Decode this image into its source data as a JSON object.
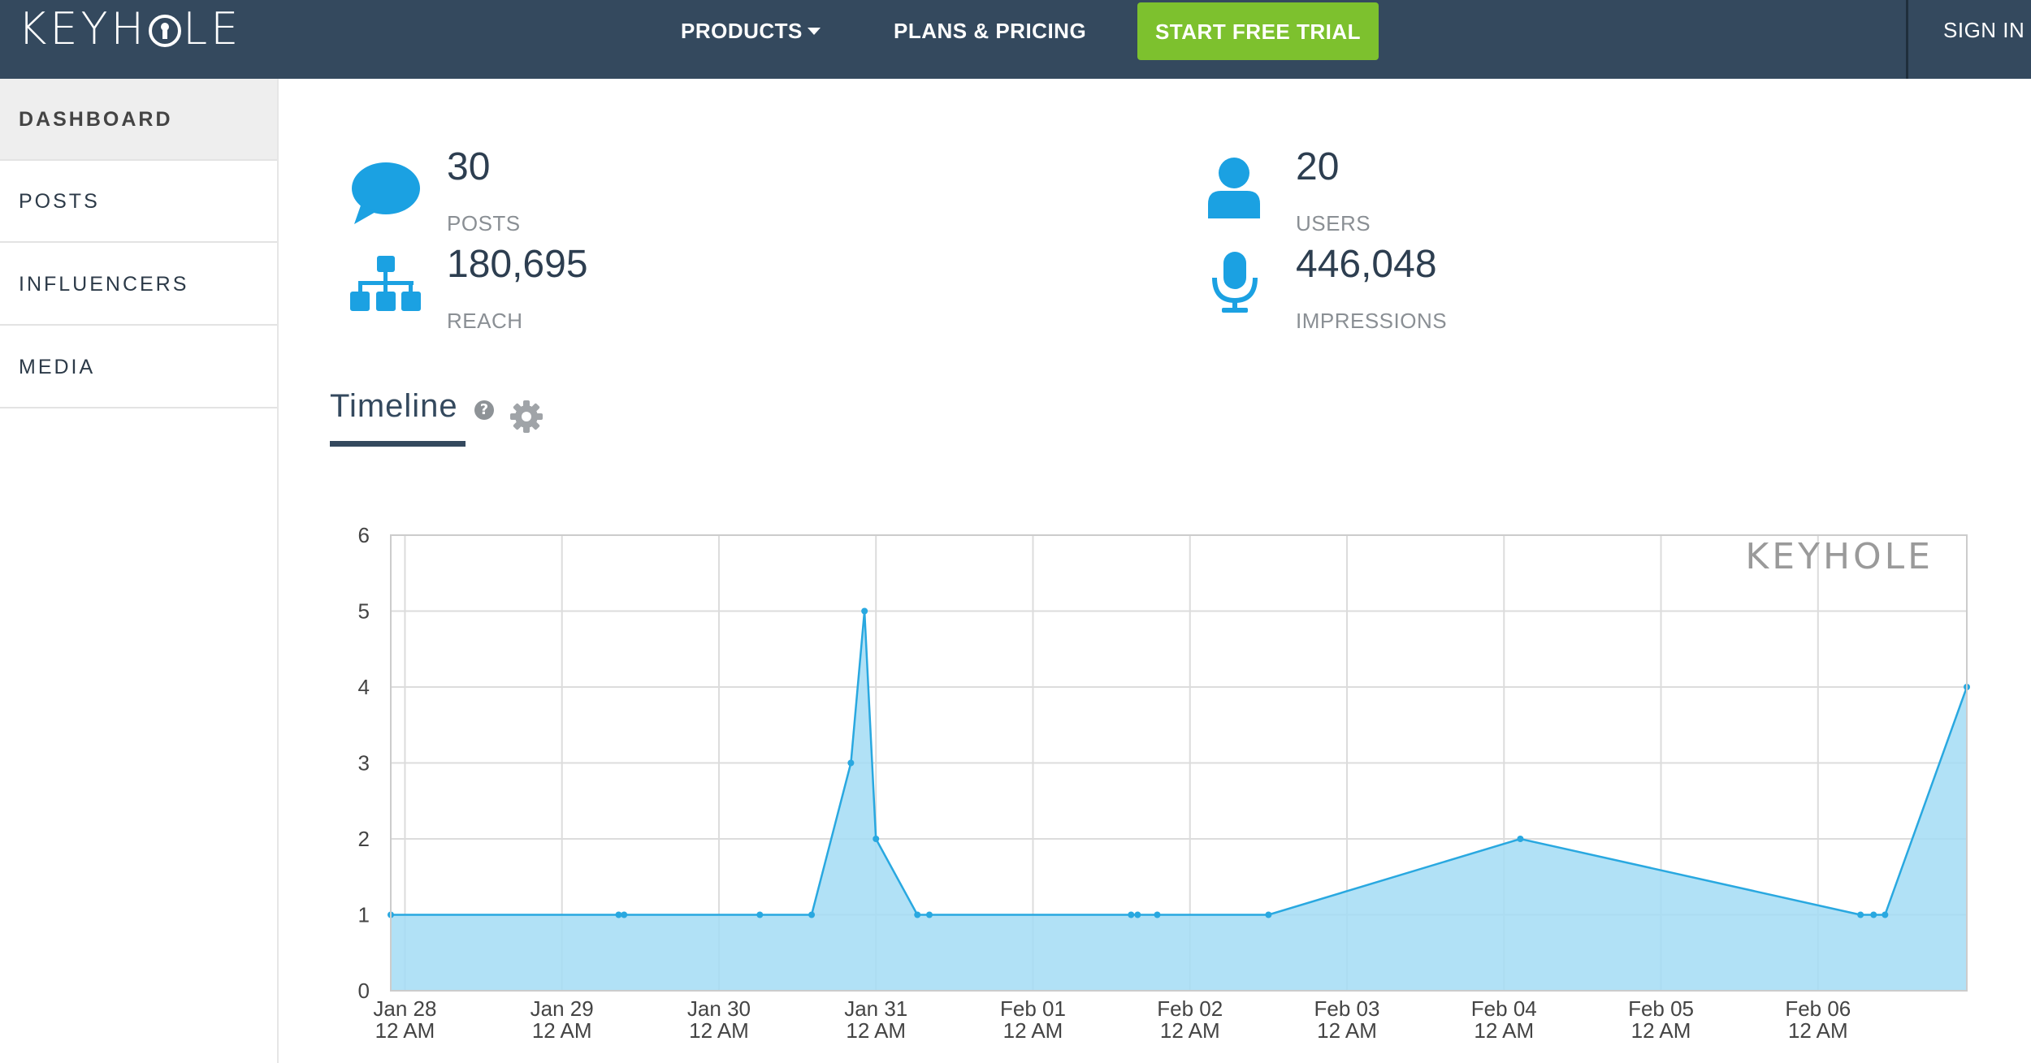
{
  "header": {
    "logo": "KEYHOLE",
    "nav": {
      "products": "PRODUCTS",
      "pricing": "PLANS & PRICING"
    },
    "trial_button": "START FREE TRIAL",
    "sign_in": "SIGN IN"
  },
  "sidebar": {
    "items": [
      {
        "label": "DASHBOARD",
        "active": true
      },
      {
        "label": "POSTS",
        "active": false
      },
      {
        "label": "INFLUENCERS",
        "active": false
      },
      {
        "label": "MEDIA",
        "active": false
      }
    ]
  },
  "stats": {
    "posts": {
      "value": "30",
      "label": "POSTS",
      "icon": "speech-bubble-icon"
    },
    "users": {
      "value": "20",
      "label": "USERS",
      "icon": "user-icon"
    },
    "reach": {
      "value": "180,695",
      "label": "REACH",
      "icon": "network-icon"
    },
    "impressions": {
      "value": "446,048",
      "label": "IMPRESSIONS",
      "icon": "microphone-icon"
    }
  },
  "timeline": {
    "title": "Timeline",
    "help_glyph": "?"
  },
  "colors": {
    "nav_bg": "#34495e",
    "accent_green": "#7dc12e",
    "icon_blue": "#1ba1e2",
    "series_line": "#29a8e0",
    "series_fill": "#a3dcf5"
  },
  "chart_data": {
    "type": "area",
    "watermark": "KEYHOLE",
    "ylim": [
      0,
      6
    ],
    "y_ticks": [
      "0",
      "1",
      "2",
      "3",
      "4",
      "5",
      "6"
    ],
    "x_ticks": [
      {
        "date": "Jan 28",
        "time": "12 AM"
      },
      {
        "date": "Jan 29",
        "time": "12 AM"
      },
      {
        "date": "Jan 30",
        "time": "12 AM"
      },
      {
        "date": "Jan 31",
        "time": "12 AM"
      },
      {
        "date": "Feb 01",
        "time": "12 AM"
      },
      {
        "date": "Feb 02",
        "time": "12 AM"
      },
      {
        "date": "Feb 03",
        "time": "12 AM"
      },
      {
        "date": "Feb 04",
        "time": "12 AM"
      },
      {
        "date": "Feb 05",
        "time": "12 AM"
      },
      {
        "date": "Feb 06",
        "time": "12 AM"
      }
    ],
    "xlim": [
      "Jan 27 21:50",
      "Feb 06 22:45"
    ],
    "points": [
      {
        "x": "Jan 27 21:50",
        "y": 1
      },
      {
        "x": "Jan 29 08:40",
        "y": 1
      },
      {
        "x": "Jan 29 09:30",
        "y": 1
      },
      {
        "x": "Jan 30 06:15",
        "y": 1
      },
      {
        "x": "Jan 30 14:10",
        "y": 1
      },
      {
        "x": "Jan 30 20:10",
        "y": 3
      },
      {
        "x": "Jan 30 22:15",
        "y": 5
      },
      {
        "x": "Jan 31 00:00",
        "y": 2
      },
      {
        "x": "Jan 31 06:20",
        "y": 1
      },
      {
        "x": "Jan 31 08:10",
        "y": 1
      },
      {
        "x": "Feb 01 15:00",
        "y": 1
      },
      {
        "x": "Feb 01 16:00",
        "y": 1
      },
      {
        "x": "Feb 01 19:00",
        "y": 1
      },
      {
        "x": "Feb 02 12:00",
        "y": 1
      },
      {
        "x": "Feb 04 02:30",
        "y": 2
      },
      {
        "x": "Feb 06 06:30",
        "y": 1
      },
      {
        "x": "Feb 06 08:30",
        "y": 1
      },
      {
        "x": "Feb 06 10:15",
        "y": 1
      },
      {
        "x": "Feb 06 22:45",
        "y": 4
      }
    ],
    "grid": true,
    "legend": "none"
  }
}
